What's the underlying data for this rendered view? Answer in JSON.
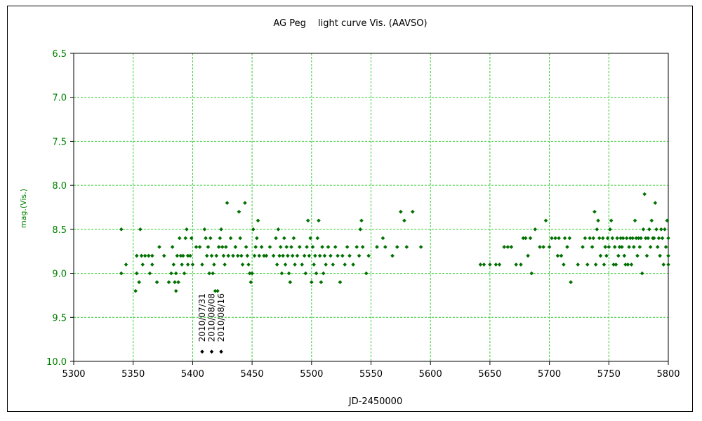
{
  "chart_data": {
    "type": "scatter",
    "title": "AG Peg　 light curve  Vis. (AAVSO)",
    "xlabel": "JD-2450000",
    "ylabel": "mag.(Vis.)",
    "xlim": [
      5300,
      5800
    ],
    "ylim": [
      6.5,
      10.0
    ],
    "y_inverted": true,
    "xticks": [
      "5300",
      "5350",
      "5400",
      "5450",
      "5500",
      "5550",
      "5600",
      "5650",
      "5700",
      "5750",
      "5800"
    ],
    "yticks": [
      "6.5",
      "7.0",
      "7.5",
      "8.0",
      "8.5",
      "9.0",
      "9.5",
      "10.0"
    ],
    "grid": true,
    "colors": {
      "observations": "#007000",
      "annotations": "#000000",
      "grid": "#33cc33",
      "ytick": "#008000"
    },
    "series": [
      {
        "color": "#007000",
        "points": [
          [
            5340,
            8.5
          ],
          [
            5340,
            9.0
          ],
          [
            5344,
            8.9
          ],
          [
            5352,
            9.2
          ],
          [
            5353,
            8.8
          ],
          [
            5353,
            9.0
          ],
          [
            5355,
            9.1
          ],
          [
            5356,
            8.5
          ],
          [
            5357,
            8.8
          ],
          [
            5358,
            8.9
          ],
          [
            5360,
            8.8
          ],
          [
            5363,
            8.8
          ],
          [
            5364,
            9.0
          ],
          [
            5366,
            8.8
          ],
          [
            5366,
            8.9
          ],
          [
            5370,
            9.1
          ],
          [
            5372,
            8.7
          ],
          [
            5376,
            8.8
          ],
          [
            5380,
            9.1
          ],
          [
            5382,
            9.0
          ],
          [
            5383,
            8.7
          ],
          [
            5384,
            8.9
          ],
          [
            5385,
            9.1
          ],
          [
            5386,
            9.0
          ],
          [
            5386,
            9.2
          ],
          [
            5387,
            8.8
          ],
          [
            5388,
            9.1
          ],
          [
            5389,
            8.6
          ],
          [
            5390,
            8.8
          ],
          [
            5391,
            8.9
          ],
          [
            5392,
            8.8
          ],
          [
            5393,
            9.0
          ],
          [
            5394,
            8.6
          ],
          [
            5395,
            8.5
          ],
          [
            5396,
            8.8
          ],
          [
            5396,
            8.9
          ],
          [
            5398,
            8.8
          ],
          [
            5399,
            8.6
          ],
          [
            5400,
            8.9
          ],
          [
            5403,
            8.7
          ],
          [
            5406,
            8.7
          ],
          [
            5408,
            8.9
          ],
          [
            5410,
            8.5
          ],
          [
            5411,
            8.6
          ],
          [
            5412,
            8.8
          ],
          [
            5413,
            8.7
          ],
          [
            5414,
            9.0
          ],
          [
            5415,
            8.6
          ],
          [
            5416,
            8.8
          ],
          [
            5417,
            9.0
          ],
          [
            5418,
            8.9
          ],
          [
            5419,
            9.2
          ],
          [
            5420,
            8.8
          ],
          [
            5421,
            9.2
          ],
          [
            5422,
            8.7
          ],
          [
            5423,
            8.6
          ],
          [
            5424,
            8.5
          ],
          [
            5425,
            8.7
          ],
          [
            5426,
            8.8
          ],
          [
            5427,
            8.9
          ],
          [
            5428,
            8.7
          ],
          [
            5429,
            8.2
          ],
          [
            5430,
            8.8
          ],
          [
            5432,
            8.6
          ],
          [
            5434,
            8.8
          ],
          [
            5436,
            8.7
          ],
          [
            5438,
            8.8
          ],
          [
            5439,
            8.3
          ],
          [
            5440,
            8.6
          ],
          [
            5441,
            8.8
          ],
          [
            5442,
            8.9
          ],
          [
            5444,
            8.2
          ],
          [
            5445,
            8.7
          ],
          [
            5446,
            8.8
          ],
          [
            5447,
            8.9
          ],
          [
            5448,
            9.0
          ],
          [
            5449,
            9.1
          ],
          [
            5450,
            9.0
          ],
          [
            5451,
            8.5
          ],
          [
            5452,
            8.8
          ],
          [
            5453,
            8.7
          ],
          [
            5454,
            8.6
          ],
          [
            5455,
            8.4
          ],
          [
            5456,
            8.8
          ],
          [
            5458,
            8.7
          ],
          [
            5460,
            8.8
          ],
          [
            5462,
            8.8
          ],
          [
            5465,
            8.7
          ],
          [
            5468,
            8.8
          ],
          [
            5470,
            8.6
          ],
          [
            5471,
            8.9
          ],
          [
            5472,
            8.5
          ],
          [
            5473,
            8.8
          ],
          [
            5474,
            8.7
          ],
          [
            5475,
            9.0
          ],
          [
            5476,
            8.8
          ],
          [
            5477,
            8.6
          ],
          [
            5478,
            8.9
          ],
          [
            5479,
            8.7
          ],
          [
            5480,
            8.8
          ],
          [
            5481,
            9.0
          ],
          [
            5482,
            9.1
          ],
          [
            5483,
            8.7
          ],
          [
            5484,
            8.8
          ],
          [
            5485,
            8.6
          ],
          [
            5486,
            8.9
          ],
          [
            5488,
            8.8
          ],
          [
            5490,
            8.7
          ],
          [
            5492,
            8.9
          ],
          [
            5494,
            8.8
          ],
          [
            5495,
            9.0
          ],
          [
            5496,
            8.7
          ],
          [
            5497,
            8.4
          ],
          [
            5498,
            8.8
          ],
          [
            5499,
            8.6
          ],
          [
            5500,
            9.1
          ],
          [
            5501,
            8.7
          ],
          [
            5502,
            8.9
          ],
          [
            5503,
            8.8
          ],
          [
            5504,
            9.0
          ],
          [
            5505,
            8.6
          ],
          [
            5506,
            8.4
          ],
          [
            5507,
            8.8
          ],
          [
            5508,
            9.1
          ],
          [
            5509,
            8.7
          ],
          [
            5510,
            9.0
          ],
          [
            5511,
            8.8
          ],
          [
            5512,
            8.9
          ],
          [
            5514,
            8.7
          ],
          [
            5516,
            8.8
          ],
          [
            5518,
            8.9
          ],
          [
            5520,
            8.7
          ],
          [
            5522,
            8.8
          ],
          [
            5524,
            9.1
          ],
          [
            5526,
            8.8
          ],
          [
            5528,
            8.9
          ],
          [
            5530,
            8.7
          ],
          [
            5532,
            8.8
          ],
          [
            5535,
            8.9
          ],
          [
            5538,
            8.7
          ],
          [
            5540,
            8.8
          ],
          [
            5541,
            8.5
          ],
          [
            5542,
            8.4
          ],
          [
            5543,
            8.7
          ],
          [
            5546,
            9.0
          ],
          [
            5548,
            8.8
          ],
          [
            5555,
            8.7
          ],
          [
            5560,
            8.6
          ],
          [
            5562,
            8.7
          ],
          [
            5568,
            8.8
          ],
          [
            5572,
            8.7
          ],
          [
            5575,
            8.3
          ],
          [
            5578,
            8.4
          ],
          [
            5580,
            8.7
          ],
          [
            5585,
            8.3
          ],
          [
            5592,
            8.7
          ],
          [
            5642,
            8.9
          ],
          [
            5645,
            8.9
          ],
          [
            5650,
            8.9
          ],
          [
            5655,
            8.9
          ],
          [
            5658,
            8.9
          ],
          [
            5662,
            8.7
          ],
          [
            5665,
            8.7
          ],
          [
            5668,
            8.7
          ],
          [
            5672,
            8.9
          ],
          [
            5676,
            8.9
          ],
          [
            5678,
            8.6
          ],
          [
            5680,
            8.6
          ],
          [
            5682,
            8.8
          ],
          [
            5684,
            8.6
          ],
          [
            5685,
            9.0
          ],
          [
            5688,
            8.5
          ],
          [
            5692,
            8.7
          ],
          [
            5695,
            8.7
          ],
          [
            5697,
            8.4
          ],
          [
            5700,
            8.7
          ],
          [
            5702,
            8.6
          ],
          [
            5705,
            8.6
          ],
          [
            5707,
            8.8
          ],
          [
            5708,
            8.6
          ],
          [
            5710,
            8.8
          ],
          [
            5712,
            8.9
          ],
          [
            5713,
            8.6
          ],
          [
            5715,
            8.7
          ],
          [
            5717,
            8.6
          ],
          [
            5718,
            9.1
          ],
          [
            5724,
            8.9
          ],
          [
            5728,
            8.7
          ],
          [
            5730,
            8.6
          ],
          [
            5732,
            8.9
          ],
          [
            5734,
            8.6
          ],
          [
            5736,
            8.7
          ],
          [
            5737,
            8.6
          ],
          [
            5738,
            8.3
          ],
          [
            5739,
            8.9
          ],
          [
            5740,
            8.5
          ],
          [
            5741,
            8.4
          ],
          [
            5742,
            8.6
          ],
          [
            5743,
            8.8
          ],
          [
            5745,
            8.6
          ],
          [
            5746,
            8.9
          ],
          [
            5747,
            8.7
          ],
          [
            5748,
            8.8
          ],
          [
            5749,
            8.6
          ],
          [
            5750,
            8.7
          ],
          [
            5751,
            8.5
          ],
          [
            5752,
            8.4
          ],
          [
            5753,
            8.6
          ],
          [
            5754,
            8.9
          ],
          [
            5755,
            8.7
          ],
          [
            5756,
            8.9
          ],
          [
            5757,
            8.6
          ],
          [
            5758,
            8.8
          ],
          [
            5759,
            8.7
          ],
          [
            5760,
            8.6
          ],
          [
            5761,
            8.7
          ],
          [
            5762,
            8.6
          ],
          [
            5763,
            8.8
          ],
          [
            5764,
            8.9
          ],
          [
            5765,
            8.6
          ],
          [
            5766,
            8.9
          ],
          [
            5767,
            8.7
          ],
          [
            5768,
            8.6
          ],
          [
            5769,
            8.9
          ],
          [
            5770,
            8.6
          ],
          [
            5771,
            8.7
          ],
          [
            5772,
            8.4
          ],
          [
            5773,
            8.6
          ],
          [
            5774,
            8.8
          ],
          [
            5775,
            8.6
          ],
          [
            5776,
            8.7
          ],
          [
            5777,
            8.6
          ],
          [
            5778,
            9.0
          ],
          [
            5779,
            8.5
          ],
          [
            5780,
            8.1
          ],
          [
            5781,
            8.6
          ],
          [
            5782,
            8.8
          ],
          [
            5783,
            8.6
          ],
          [
            5784,
            8.5
          ],
          [
            5785,
            8.7
          ],
          [
            5786,
            8.4
          ],
          [
            5787,
            8.6
          ],
          [
            5788,
            8.6
          ],
          [
            5789,
            8.2
          ],
          [
            5790,
            8.5
          ],
          [
            5791,
            8.7
          ],
          [
            5792,
            8.6
          ],
          [
            5793,
            8.8
          ],
          [
            5794,
            8.5
          ],
          [
            5795,
            8.6
          ],
          [
            5796,
            8.9
          ],
          [
            5797,
            8.5
          ],
          [
            5798,
            8.7
          ],
          [
            5799,
            8.4
          ],
          [
            5800,
            8.6
          ],
          [
            5800,
            8.9
          ],
          [
            5800,
            8.8
          ]
        ]
      },
      {
        "color": "#000000",
        "points": [
          [
            5408,
            9.89
          ],
          [
            5416,
            9.89
          ],
          [
            5424,
            9.89
          ]
        ],
        "labels": [
          "2010/07/31",
          "2010/08/08",
          "2010/08/16"
        ]
      }
    ]
  }
}
